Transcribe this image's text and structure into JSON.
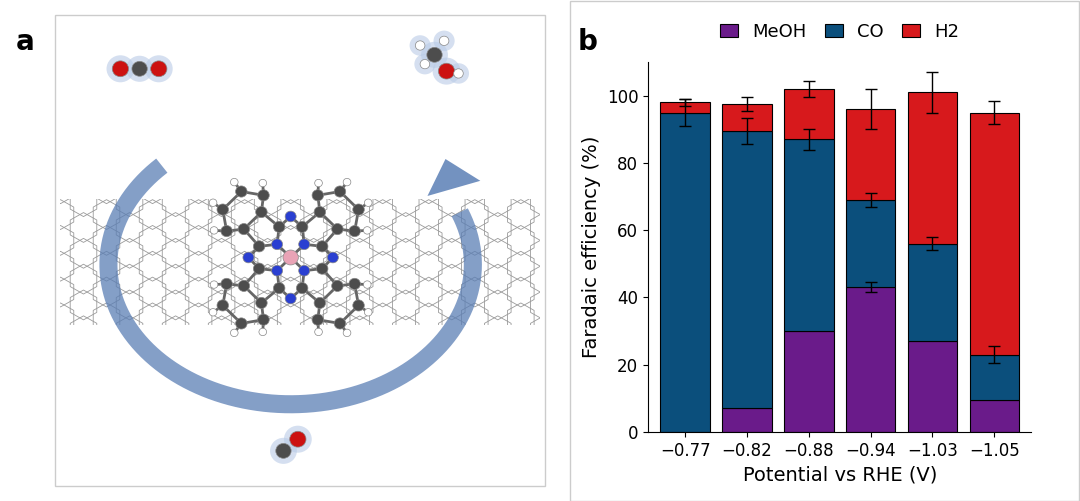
{
  "panel_labels": [
    "a",
    "b"
  ],
  "chart_data": {
    "type": "bar",
    "stacked": true,
    "x_label": "Potential vs RHE (V)",
    "y_label": "Faradaic efficiency (%)",
    "categories": [
      "−0.77",
      "−0.82",
      "−0.88",
      "−0.94",
      "−1.03",
      "−1.05"
    ],
    "series": [
      {
        "name": "MeOH",
        "color": "#6a1b8a",
        "values": [
          0,
          7,
          30,
          43,
          27,
          9.5
        ],
        "errors": [
          null,
          null,
          null,
          1.5,
          null,
          null
        ]
      },
      {
        "name": "CO",
        "color": "#0b4f7c",
        "values": [
          95,
          82.5,
          57,
          26,
          29,
          13.5
        ],
        "errors": [
          4,
          4,
          3,
          2,
          2,
          2.5
        ]
      },
      {
        "name": "H2",
        "color": "#d7191c",
        "values": [
          3,
          8,
          15,
          27,
          45,
          72
        ],
        "errors": [
          1,
          2,
          2.5,
          6,
          6,
          3.5
        ]
      }
    ],
    "ylim": [
      0,
      110
    ],
    "yticks": [
      0,
      20,
      40,
      60,
      80,
      100
    ],
    "legend": "upper center",
    "grid": false
  }
}
